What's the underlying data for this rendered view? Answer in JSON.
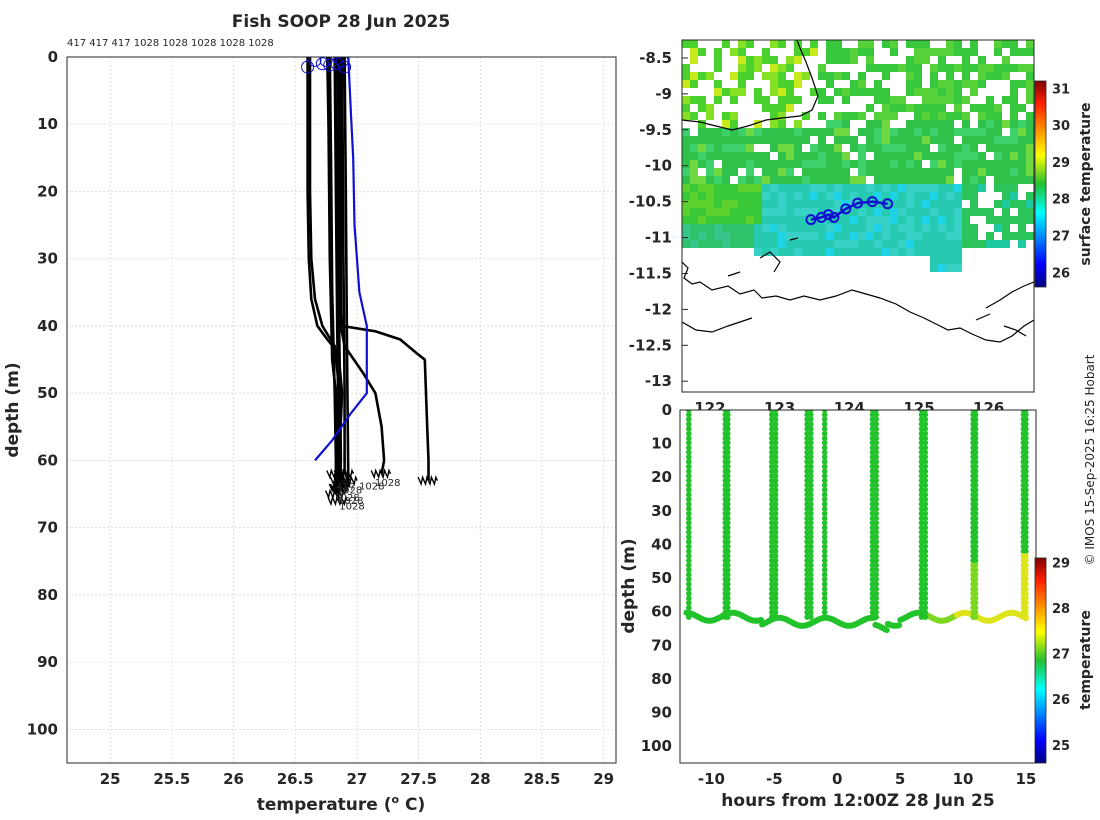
{
  "chart_data": [
    {
      "panel": "profiles",
      "type": "line",
      "title": "Fish SOOP 28 Jun 2025",
      "header_ids": "417 417 417 1028 1028 1028 1028 1028",
      "xlabel": "temperature (",
      "xlabel_sup": "o",
      "xlabel_unit": " C)",
      "ylabel": "depth (m)",
      "xlim": [
        24.65,
        29.1
      ],
      "ylim": [
        0,
        105
      ],
      "xticks": [
        25,
        25.5,
        26,
        26.5,
        27,
        27.5,
        28,
        28.5,
        29
      ],
      "yticks": [
        0,
        10,
        20,
        30,
        40,
        50,
        60,
        70,
        80,
        90,
        100
      ],
      "grid": true,
      "colors": {
        "profile": "#000000",
        "highlight": "#1010d0"
      },
      "surface_markers": [
        [
          26.6,
          1.5
        ],
        [
          26.66,
          0.5
        ],
        [
          26.72,
          1
        ],
        [
          26.75,
          0.5
        ],
        [
          26.78,
          1.2
        ],
        [
          26.84,
          1
        ],
        [
          26.88,
          0.6
        ],
        [
          26.9,
          1.5
        ]
      ],
      "series": [
        {
          "name": "profile-1",
          "points": [
            [
              26.6,
              0
            ],
            [
              26.6,
              20
            ],
            [
              26.61,
              30
            ],
            [
              26.63,
              36
            ],
            [
              26.68,
              40
            ],
            [
              26.76,
              42
            ],
            [
              26.85,
              44
            ],
            [
              26.88,
              50
            ],
            [
              26.86,
              58
            ],
            [
              26.87,
              63
            ]
          ]
        },
        {
          "name": "profile-2",
          "points": [
            [
              26.62,
              0
            ],
            [
              26.62,
              20
            ],
            [
              26.63,
              30
            ],
            [
              26.66,
              36
            ],
            [
              26.72,
              40
            ],
            [
              26.82,
              43
            ],
            [
              26.86,
              50
            ],
            [
              26.86,
              58
            ],
            [
              26.87,
              64
            ]
          ]
        },
        {
          "name": "profile-3",
          "points": [
            [
              26.76,
              0
            ],
            [
              26.77,
              10
            ],
            [
              26.78,
              30
            ],
            [
              26.8,
              45
            ],
            [
              26.83,
              50
            ],
            [
              26.84,
              58
            ],
            [
              26.84,
              62
            ]
          ]
        },
        {
          "name": "profile-4",
          "points": [
            [
              26.78,
              0
            ],
            [
              26.79,
              15
            ],
            [
              26.8,
              35
            ],
            [
              26.82,
              50
            ],
            [
              26.83,
              60
            ],
            [
              26.83,
              65
            ]
          ]
        },
        {
          "name": "profile-5",
          "points": [
            [
              26.82,
              0
            ],
            [
              26.83,
              20
            ],
            [
              26.84,
              40
            ],
            [
              26.85,
              55
            ],
            [
              26.85,
              66
            ]
          ]
        },
        {
          "name": "profile-6",
          "points": [
            [
              26.84,
              0
            ],
            [
              26.85,
              30
            ],
            [
              26.86,
              45
            ],
            [
              26.87,
              60
            ],
            [
              26.86,
              64
            ]
          ]
        },
        {
          "name": "profile-7",
          "points": [
            [
              26.88,
              0
            ],
            [
              26.89,
              30
            ],
            [
              26.9,
              50
            ],
            [
              26.9,
              62
            ]
          ]
        },
        {
          "name": "profile-8",
          "points": [
            [
              26.9,
              0
            ],
            [
              26.91,
              20
            ],
            [
              26.92,
              45
            ],
            [
              26.93,
              63
            ]
          ]
        },
        {
          "name": "profile-9",
          "points": [
            [
              26.86,
              0
            ],
            [
              26.87,
              38
            ],
            [
              26.88,
              40
            ],
            [
              27.15,
              40.8
            ],
            [
              27.35,
              42
            ],
            [
              27.48,
              44
            ],
            [
              27.55,
              45
            ],
            [
              27.57,
              55
            ],
            [
              27.58,
              60
            ],
            [
              27.58,
              63
            ]
          ]
        },
        {
          "name": "profile-10",
          "points": [
            [
              26.87,
              0
            ],
            [
              26.87,
              40
            ],
            [
              26.9,
              43
            ],
            [
              27.05,
              47
            ],
            [
              27.15,
              50
            ],
            [
              27.2,
              55
            ],
            [
              27.22,
              60
            ],
            [
              27.2,
              62
            ]
          ]
        },
        {
          "name": "profile-blue",
          "color": "#1010d0",
          "points": [
            [
              26.93,
              0
            ],
            [
              26.95,
              8
            ],
            [
              26.97,
              15
            ],
            [
              26.98,
              25
            ],
            [
              27.02,
              35
            ],
            [
              27.08,
              40
            ],
            [
              27.08,
              50
            ],
            [
              26.95,
              53
            ],
            [
              26.8,
              57
            ],
            [
              26.66,
              60
            ]
          ]
        }
      ],
      "bottom_labels": [
        {
          "text": "1028",
          "x": 27.25,
          "y": 63.8
        },
        {
          "text": "1028",
          "x": 27.12,
          "y": 64.3
        },
        {
          "text": "417",
          "x": 26.91,
          "y": 64.4
        },
        {
          "text": "1028",
          "x": 26.94,
          "y": 64.9
        },
        {
          "text": "1028",
          "x": 26.92,
          "y": 66.0
        },
        {
          "text": "1028",
          "x": 26.95,
          "y": 66.5
        },
        {
          "text": "1028",
          "x": 26.96,
          "y": 67.3
        }
      ]
    },
    {
      "panel": "map",
      "type": "heatmap",
      "colorbar_label": "surface temperature",
      "xlim": [
        121.6,
        126.65
      ],
      "ylim": [
        -13.15,
        -8.25
      ],
      "xticks_partial": [
        "122",
        "123",
        "124",
        "125",
        "126"
      ],
      "yticks": [
        -8.5,
        -9,
        -9.5,
        -10,
        -10.5,
        -11,
        -11.5,
        -12,
        -12.5,
        -13
      ],
      "cbar_ticks": [
        26,
        27,
        28,
        29,
        30,
        31
      ],
      "cbar_range": [
        25.6,
        31.2
      ],
      "track_points": [
        [
          123.45,
          -10.75
        ],
        [
          123.6,
          -10.72
        ],
        [
          123.7,
          -10.68
        ],
        [
          123.78,
          -10.72
        ],
        [
          123.85,
          -10.67
        ],
        [
          123.95,
          -10.6
        ],
        [
          124.12,
          -10.52
        ],
        [
          124.33,
          -10.5
        ],
        [
          124.55,
          -10.53
        ]
      ],
      "track_circles": [
        [
          123.45,
          -10.75
        ],
        [
          123.6,
          -10.72
        ],
        [
          123.7,
          -10.68
        ],
        [
          123.78,
          -10.72
        ],
        [
          123.95,
          -10.6
        ],
        [
          124.12,
          -10.52
        ],
        [
          124.33,
          -10.5
        ],
        [
          124.55,
          -10.53
        ]
      ]
    },
    {
      "panel": "time-depth",
      "type": "scatter",
      "xlabel": "hours from 12:00Z 28 Jun 25",
      "ylabel": "depth (m)",
      "colorbar_label": "temperature",
      "xlim": [
        -12.5,
        15.8
      ],
      "ylim": [
        0,
        105
      ],
      "xticks": [
        -10,
        -5,
        0,
        5,
        10,
        15
      ],
      "yticks": [
        0,
        10,
        20,
        30,
        40,
        50,
        60,
        70,
        80,
        90,
        100
      ],
      "cbar_ticks": [
        25,
        26,
        27,
        28,
        29
      ],
      "cbar_range": [
        24.6,
        29.1
      ],
      "dives": [
        -11.8,
        -8.9,
        -8.7,
        -5.2,
        -4.9,
        -2.4,
        -2.1,
        -1.0,
        2.8,
        3.1,
        6.7,
        7.0,
        10.8,
        11.0,
        14.8,
        15.0
      ],
      "colors": {
        "low": "#22c32a",
        "mid": "#7bd81f",
        "high": "#dde41b",
        "top": "#d4e43a"
      }
    }
  ],
  "footer": {
    "copyright": "© IMOS 15-Sep-2025 16:25 Hobart"
  }
}
